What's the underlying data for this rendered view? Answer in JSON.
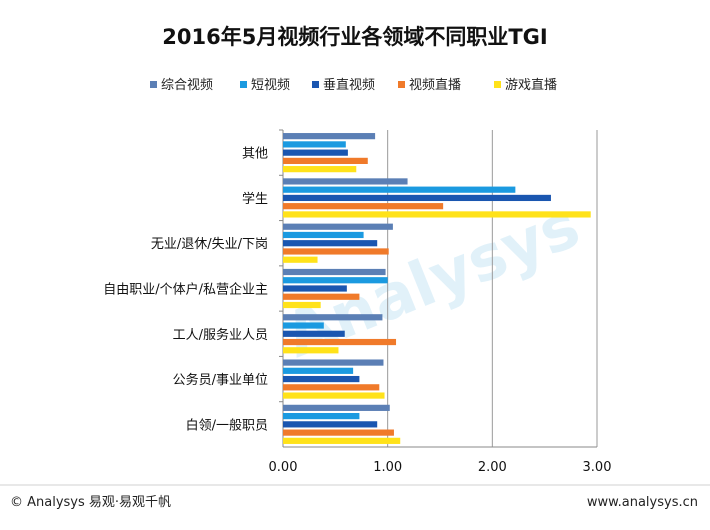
{
  "chart_data": {
    "type": "bar",
    "orientation": "horizontal",
    "title": "2016年5月视频行业各领域不同职业TGI",
    "categories": [
      "其他",
      "学生",
      "无业/退休/失业/下岗",
      "自由职业/个体户/私营企业主",
      "工人/服务业人员",
      "公务员/事业单位",
      "白领/一般职员"
    ],
    "series": [
      {
        "name": "综合视频",
        "color": "#5b7fb5",
        "values": [
          0.88,
          1.19,
          1.05,
          0.98,
          0.95,
          0.96,
          1.02
        ]
      },
      {
        "name": "短视频",
        "color": "#1b9ae0",
        "values": [
          0.6,
          2.22,
          0.77,
          1.0,
          0.39,
          0.67,
          0.73
        ]
      },
      {
        "name": "垂直视频",
        "color": "#1a56b0",
        "values": [
          0.62,
          2.56,
          0.9,
          0.61,
          0.59,
          0.73,
          0.9
        ]
      },
      {
        "name": "视频直播",
        "color": "#f07a2a",
        "values": [
          0.81,
          1.53,
          1.01,
          0.73,
          1.08,
          0.92,
          1.06
        ]
      },
      {
        "name": "游戏直播",
        "color": "#ffe21a",
        "values": [
          0.7,
          2.94,
          0.33,
          0.36,
          0.53,
          0.97,
          1.12
        ]
      }
    ],
    "xlim": [
      0,
      3
    ],
    "xticks": [
      "0.00",
      "1.00",
      "2.00",
      "3.00"
    ],
    "grid": true,
    "legend_position": "top"
  },
  "footer": {
    "left": "© Analysys 易观·易观千帆",
    "right": "www.analysys.cn"
  },
  "watermark": "Analysys",
  "colors": {
    "axis": "#888888",
    "grid": "#9a9a9a"
  }
}
